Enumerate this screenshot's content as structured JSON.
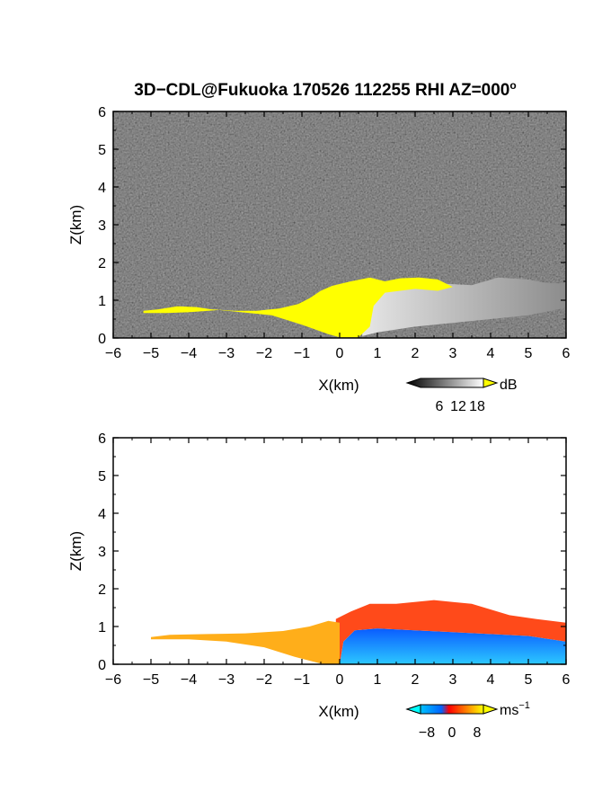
{
  "title_main": "3D−CDL@Fukuoka 170526 112255 RHI AZ=000",
  "title_deg": "o",
  "chart_data": [
    {
      "type": "heatmap",
      "name": "reflectivity",
      "xlabel": "X(km)",
      "ylabel": "Z(km)",
      "xlim": [
        -6,
        6
      ],
      "ylim": [
        0,
        6
      ],
      "xticks": [
        "−6",
        "−5",
        "−4",
        "−3",
        "−2",
        "−1",
        "0",
        "1",
        "2",
        "3",
        "4",
        "5",
        "6"
      ],
      "yticks": [
        "0",
        "1",
        "2",
        "3",
        "4",
        "5",
        "6"
      ],
      "colorbar": {
        "unit": "dB",
        "ticks": [
          "6",
          "12",
          "18"
        ],
        "range": [
          0,
          20
        ],
        "colors": [
          "#000000",
          "#ffffff"
        ],
        "over_color": "#ffff00"
      },
      "background": "noise (dark gray)",
      "regions": [
        {
          "label": "saturated (>18 dB)",
          "color": "#ffff00",
          "outline": [
            [
              -5.2,
              0.72
            ],
            [
              -4.8,
              0.76
            ],
            [
              -4.3,
              0.84
            ],
            [
              -3.8,
              0.82
            ],
            [
              -3.4,
              0.76
            ],
            [
              -2.8,
              0.72
            ],
            [
              -2.2,
              0.72
            ],
            [
              -1.6,
              0.78
            ],
            [
              -1.1,
              0.9
            ],
            [
              -0.8,
              1.05
            ],
            [
              -0.5,
              1.25
            ],
            [
              -0.2,
              1.38
            ],
            [
              0.3,
              1.5
            ],
            [
              0.8,
              1.6
            ],
            [
              1.2,
              1.5
            ],
            [
              1.6,
              1.58
            ],
            [
              2.1,
              1.6
            ],
            [
              2.6,
              1.55
            ],
            [
              3.0,
              1.35
            ],
            [
              2.6,
              1.25
            ],
            [
              2.0,
              1.3
            ],
            [
              1.2,
              1.2
            ],
            [
              0.9,
              0.85
            ],
            [
              0.8,
              0.3
            ],
            [
              0.5,
              0.02
            ],
            [
              0.0,
              0.02
            ],
            [
              -0.3,
              0.1
            ],
            [
              -1.0,
              0.35
            ],
            [
              -1.8,
              0.6
            ],
            [
              -2.6,
              0.68
            ],
            [
              -3.2,
              0.74
            ],
            [
              -4.0,
              0.68
            ],
            [
              -4.6,
              0.66
            ],
            [
              -5.2,
              0.66
            ]
          ]
        },
        {
          "label": "signal (gray)",
          "color": "#c8c8c8",
          "outline": [
            [
              0.6,
              1.3
            ],
            [
              1.5,
              1.45
            ],
            [
              2.5,
              1.45
            ],
            [
              3.5,
              1.4
            ],
            [
              4.2,
              1.6
            ],
            [
              5.0,
              1.55
            ],
            [
              5.5,
              1.45
            ],
            [
              6.0,
              1.45
            ],
            [
              6.0,
              0.8
            ],
            [
              5.0,
              0.6
            ],
            [
              4.0,
              0.5
            ],
            [
              3.0,
              0.4
            ],
            [
              2.0,
              0.3
            ],
            [
              1.0,
              0.15
            ],
            [
              0.6,
              0.05
            ]
          ]
        }
      ]
    },
    {
      "type": "heatmap",
      "name": "radial-velocity",
      "xlabel": "X(km)",
      "ylabel": "Z(km)",
      "xlim": [
        -6,
        6
      ],
      "ylim": [
        0,
        6
      ],
      "xticks": [
        "−6",
        "−5",
        "−4",
        "−3",
        "−2",
        "−1",
        "0",
        "1",
        "2",
        "3",
        "4",
        "5",
        "6"
      ],
      "yticks": [
        "0",
        "1",
        "2",
        "3",
        "4",
        "5",
        "6"
      ],
      "colorbar": {
        "unit": "ms",
        "unit_exp": "−1",
        "ticks": [
          "−8",
          "0",
          "8"
        ],
        "range": [
          -10,
          10
        ],
        "colors": [
          "#00ffff",
          "#0064ff",
          "#ff0000",
          "#ffff00"
        ]
      },
      "regions": [
        {
          "label": "approaching (blue)",
          "color": "#1e78ff",
          "outline": [
            [
              0.0,
              0.0
            ],
            [
              0.1,
              0.6
            ],
            [
              0.4,
              0.9
            ],
            [
              1.0,
              0.95
            ],
            [
              2.0,
              0.9
            ],
            [
              3.0,
              0.85
            ],
            [
              4.0,
              0.8
            ],
            [
              5.0,
              0.75
            ],
            [
              6.0,
              0.6
            ],
            [
              6.0,
              0.0
            ]
          ]
        },
        {
          "label": "receding (red/orange)",
          "color": "#ff4a1a",
          "outline": [
            [
              -0.1,
              0.0
            ],
            [
              -0.1,
              1.2
            ],
            [
              0.3,
              1.4
            ],
            [
              0.8,
              1.6
            ],
            [
              1.5,
              1.6
            ],
            [
              2.5,
              1.7
            ],
            [
              3.5,
              1.6
            ],
            [
              4.5,
              1.3
            ],
            [
              5.2,
              1.2
            ],
            [
              6.0,
              1.1
            ],
            [
              6.0,
              0.6
            ],
            [
              5.0,
              0.75
            ],
            [
              4.0,
              0.8
            ],
            [
              3.0,
              0.85
            ],
            [
              2.0,
              0.9
            ],
            [
              1.0,
              0.95
            ],
            [
              0.4,
              0.9
            ],
            [
              0.1,
              0.6
            ],
            [
              0.0,
              0.0
            ]
          ]
        },
        {
          "label": "receding (orange/yellow)",
          "color": "#ffae1a",
          "outline": [
            [
              -5.0,
              0.72
            ],
            [
              -4.5,
              0.78
            ],
            [
              -3.5,
              0.8
            ],
            [
              -2.5,
              0.82
            ],
            [
              -1.5,
              0.88
            ],
            [
              -0.8,
              1.0
            ],
            [
              -0.3,
              1.15
            ],
            [
              0.0,
              1.1
            ],
            [
              0.0,
              0.0
            ],
            [
              -0.5,
              0.02
            ],
            [
              -1.2,
              0.2
            ],
            [
              -2.0,
              0.45
            ],
            [
              -3.0,
              0.6
            ],
            [
              -4.0,
              0.66
            ],
            [
              -5.0,
              0.66
            ]
          ]
        }
      ]
    }
  ]
}
